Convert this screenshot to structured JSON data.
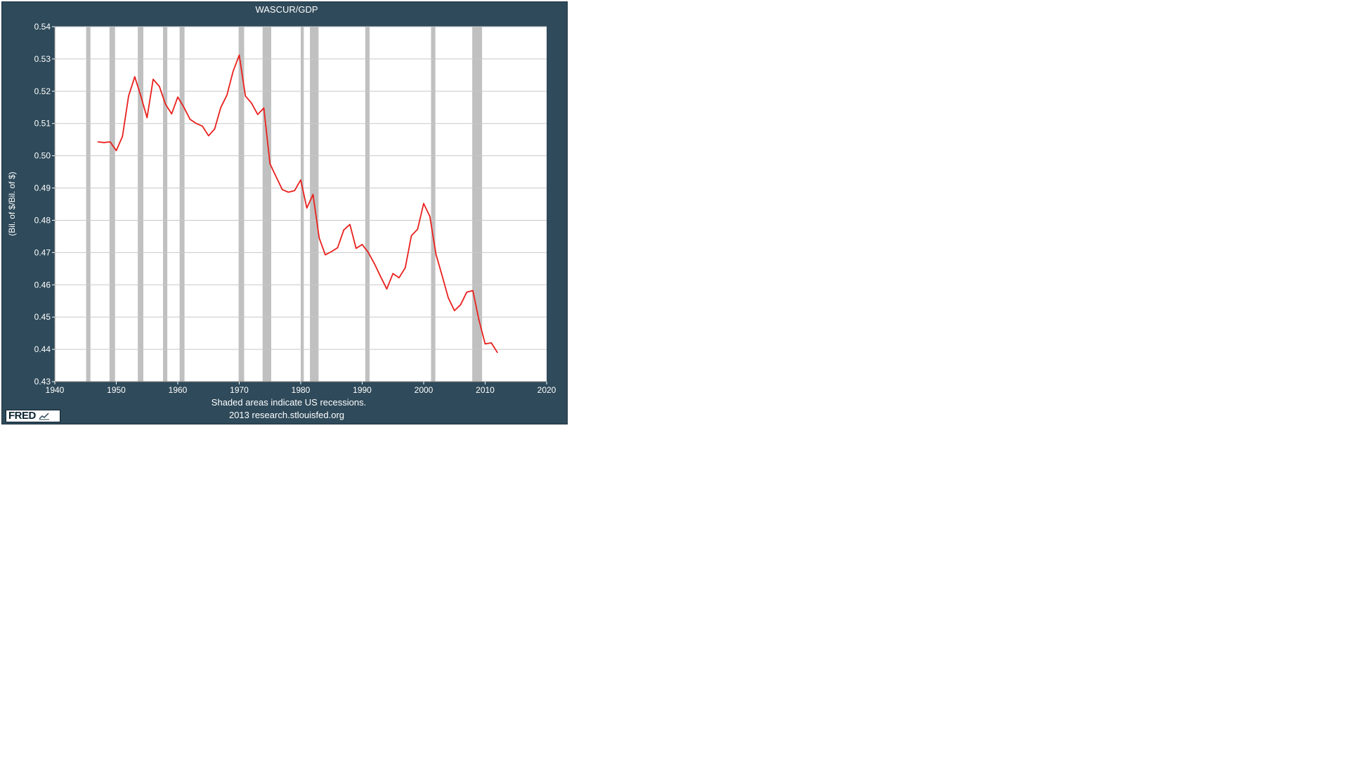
{
  "chart_data": {
    "type": "line",
    "title": "WASCUR/GDP",
    "ylabel": "(Bil. of $/Bil. of $)",
    "xlabel": "",
    "xlim": [
      1940,
      2020
    ],
    "ylim": [
      0.43,
      0.54
    ],
    "x_ticks": [
      "1940",
      "1950",
      "1960",
      "1970",
      "1980",
      "1990",
      "2000",
      "2010",
      "2020"
    ],
    "y_ticks": [
      "0.43",
      "0.44",
      "0.45",
      "0.46",
      "0.47",
      "0.48",
      "0.49",
      "0.50",
      "0.51",
      "0.52",
      "0.53",
      "0.54"
    ],
    "grid": true,
    "line_color": "#e8201c",
    "recession_color": "#c0c0c0",
    "recessions": [
      [
        1945.1,
        1945.8
      ],
      [
        1948.9,
        1949.8
      ],
      [
        1953.5,
        1954.4
      ],
      [
        1957.6,
        1958.3
      ],
      [
        1960.3,
        1961.1
      ],
      [
        1969.9,
        1970.8
      ],
      [
        1973.8,
        1975.2
      ],
      [
        1980.0,
        1980.5
      ],
      [
        1981.5,
        1982.9
      ],
      [
        1990.5,
        1991.2
      ],
      [
        2001.2,
        2001.9
      ],
      [
        2007.9,
        2009.5
      ]
    ],
    "series": [
      {
        "x": [
          1947,
          1948,
          1949,
          1950,
          1951,
          1952,
          1953,
          1954,
          1955,
          1956,
          1957,
          1958,
          1959,
          1960,
          1961,
          1962,
          1963,
          1964,
          1965,
          1966,
          1967,
          1968,
          1969,
          1970,
          1971,
          1972,
          1973,
          1974,
          1975,
          1976,
          1977,
          1978,
          1979,
          1980,
          1981,
          1982,
          1983,
          1984,
          1985,
          1986,
          1987,
          1988,
          1989,
          1990,
          1991,
          1992,
          1993,
          1994,
          1995,
          1996,
          1997,
          1998,
          1999,
          2000,
          2001,
          2002,
          2003,
          2004,
          2005,
          2006,
          2007,
          2008,
          2009,
          2010,
          2011,
          2012
        ],
        "values": [
          0.5043,
          0.5041,
          0.5043,
          0.5016,
          0.506,
          0.5185,
          0.5245,
          0.5185,
          0.5118,
          0.5237,
          0.5215,
          0.516,
          0.513,
          0.5182,
          0.515,
          0.5113,
          0.51,
          0.5092,
          0.5062,
          0.5083,
          0.515,
          0.5188,
          0.5262,
          0.5312,
          0.5185,
          0.5163,
          0.5128,
          0.5148,
          0.4975,
          0.4935,
          0.4895,
          0.4887,
          0.4892,
          0.4925,
          0.4838,
          0.488,
          0.4745,
          0.4693,
          0.4703,
          0.4715,
          0.477,
          0.4787,
          0.4713,
          0.4725,
          0.47,
          0.4665,
          0.4625,
          0.4587,
          0.4635,
          0.4622,
          0.4653,
          0.4752,
          0.4772,
          0.4852,
          0.4812,
          0.4695,
          0.4628,
          0.456,
          0.452,
          0.4538,
          0.4577,
          0.4582,
          0.449,
          0.4417,
          0.442,
          0.439
        ]
      }
    ]
  },
  "footer": {
    "note": "Shaded areas indicate US recessions.",
    "source": "2013 research.stlouisfed.org"
  },
  "logo": {
    "text": "FRED"
  }
}
